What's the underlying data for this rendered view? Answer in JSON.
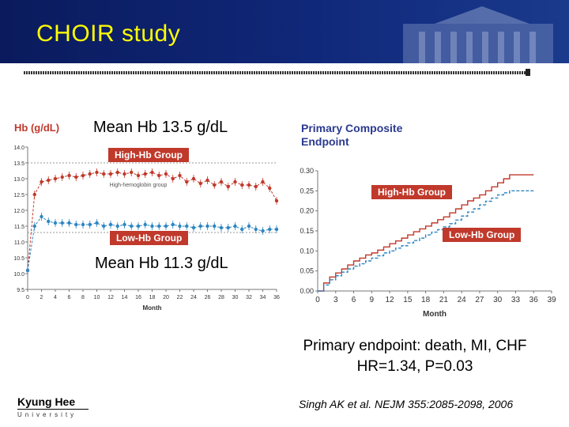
{
  "slide": {
    "title": "CHOIR study",
    "annotation_high": "Mean Hb 13.5 g/dL",
    "annotation_low": "Mean Hb 11.3 g/dL",
    "endpoint_line1": "Primary endpoint: death, MI, CHF",
    "endpoint_line2": "HR=1.34, P=0.03",
    "citation": "Singh AK et al. NEJM 355:2085-2098, 2006",
    "logo_name": "Kyung Hee",
    "logo_sub": "University"
  },
  "colors": {
    "high": "#c0392b",
    "low": "#2e86c1",
    "title": "#ffff00",
    "header": "#10287a"
  },
  "chart_data": [
    {
      "type": "line",
      "title": "",
      "ylabel": "Hb (g/dL)",
      "xlabel": "Month",
      "ylim": [
        9.5,
        14.0
      ],
      "xlim": [
        0,
        36
      ],
      "yticks": [
        "9.5",
        "10.0",
        "10.5",
        "11.0",
        "11.5",
        "12.0",
        "12.5",
        "13.0",
        "13.5",
        "14.0"
      ],
      "yticks_num": [
        9.5,
        10.0,
        10.5,
        11.0,
        11.5,
        12.0,
        12.5,
        13.0,
        13.5,
        14.0
      ],
      "xticks": [
        "0",
        "2",
        "4",
        "6",
        "8",
        "10",
        "12",
        "14",
        "16",
        "18",
        "20",
        "22",
        "24",
        "26",
        "28",
        "30",
        "32",
        "34",
        "36"
      ],
      "annotation": "High-hemoglobin group",
      "series": [
        {
          "name": "High-Hb Group",
          "x": [
            0,
            1,
            2,
            3,
            4,
            5,
            6,
            7,
            8,
            9,
            10,
            11,
            12,
            13,
            14,
            15,
            16,
            17,
            18,
            19,
            20,
            21,
            22,
            23,
            24,
            25,
            26,
            27,
            28,
            29,
            30,
            31,
            32,
            33,
            34,
            35,
            36
          ],
          "values": [
            10.1,
            12.5,
            12.9,
            12.95,
            13.0,
            13.05,
            13.1,
            13.05,
            13.1,
            13.15,
            13.2,
            13.15,
            13.15,
            13.2,
            13.15,
            13.2,
            13.1,
            13.15,
            13.2,
            13.1,
            13.15,
            13.0,
            13.1,
            12.9,
            13.0,
            12.85,
            12.95,
            12.8,
            12.9,
            12.75,
            12.9,
            12.8,
            12.8,
            12.75,
            12.9,
            12.7,
            12.3
          ]
        },
        {
          "name": "Low-Hb Group",
          "x": [
            0,
            1,
            2,
            3,
            4,
            5,
            6,
            7,
            8,
            9,
            10,
            11,
            12,
            13,
            14,
            15,
            16,
            17,
            18,
            19,
            20,
            21,
            22,
            23,
            24,
            25,
            26,
            27,
            28,
            29,
            30,
            31,
            32,
            33,
            34,
            35,
            36
          ],
          "values": [
            10.1,
            11.5,
            11.8,
            11.65,
            11.6,
            11.6,
            11.6,
            11.55,
            11.55,
            11.55,
            11.6,
            11.5,
            11.55,
            11.5,
            11.55,
            11.5,
            11.5,
            11.55,
            11.5,
            11.5,
            11.5,
            11.55,
            11.5,
            11.5,
            11.45,
            11.5,
            11.5,
            11.5,
            11.45,
            11.45,
            11.5,
            11.4,
            11.5,
            11.4,
            11.35,
            11.4,
            11.4
          ]
        }
      ]
    },
    {
      "type": "line",
      "title": "Primary Composite Endpoint",
      "xlabel": "Month",
      "ylabel": "",
      "xlim": [
        0,
        39
      ],
      "ylim": [
        0,
        0.3
      ],
      "xticks": [
        "0",
        "3",
        "6",
        "9",
        "12",
        "15",
        "18",
        "21",
        "24",
        "27",
        "30",
        "33",
        "36",
        "39"
      ],
      "xticks_num": [
        0,
        3,
        6,
        9,
        12,
        15,
        18,
        21,
        24,
        27,
        30,
        33,
        36,
        39
      ],
      "yticks": [
        "0.00",
        "0.05",
        "0.10",
        "0.15",
        "0.20",
        "0.25",
        "0.30"
      ],
      "yticks_num": [
        0,
        0.05,
        0.1,
        0.15,
        0.2,
        0.25,
        0.3
      ],
      "series": [
        {
          "name": "High-Hb Group",
          "x": [
            0,
            1,
            2,
            3,
            4,
            5,
            6,
            7,
            8,
            9,
            10,
            11,
            12,
            13,
            14,
            15,
            16,
            17,
            18,
            19,
            20,
            21,
            22,
            23,
            24,
            25,
            26,
            27,
            28,
            29,
            30,
            31,
            32,
            33,
            34,
            35,
            36
          ],
          "values": [
            0.0,
            0.02,
            0.035,
            0.045,
            0.055,
            0.065,
            0.075,
            0.082,
            0.09,
            0.095,
            0.102,
            0.11,
            0.118,
            0.125,
            0.132,
            0.14,
            0.148,
            0.155,
            0.162,
            0.17,
            0.178,
            0.185,
            0.195,
            0.205,
            0.215,
            0.225,
            0.232,
            0.24,
            0.25,
            0.26,
            0.27,
            0.28,
            0.29,
            0.29,
            0.29,
            0.29,
            0.29
          ]
        },
        {
          "name": "Low-Hb Group",
          "x": [
            0,
            1,
            2,
            3,
            4,
            5,
            6,
            7,
            8,
            9,
            10,
            11,
            12,
            13,
            14,
            15,
            16,
            17,
            18,
            19,
            20,
            21,
            22,
            23,
            24,
            25,
            26,
            27,
            28,
            29,
            30,
            31,
            32,
            33,
            34,
            35,
            36
          ],
          "values": [
            0.0,
            0.015,
            0.028,
            0.038,
            0.047,
            0.055,
            0.062,
            0.068,
            0.075,
            0.082,
            0.088,
            0.095,
            0.1,
            0.107,
            0.113,
            0.12,
            0.126,
            0.132,
            0.14,
            0.147,
            0.153,
            0.16,
            0.168,
            0.177,
            0.187,
            0.197,
            0.205,
            0.215,
            0.224,
            0.232,
            0.24,
            0.245,
            0.25,
            0.25,
            0.25,
            0.25,
            0.25
          ]
        }
      ]
    }
  ]
}
